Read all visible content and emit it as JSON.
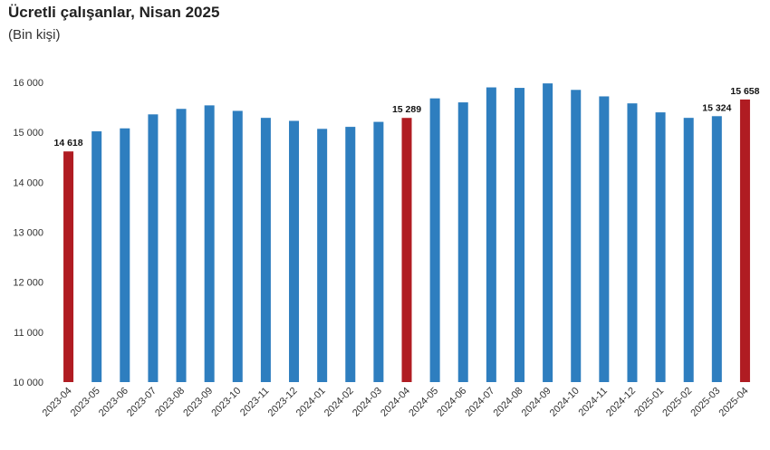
{
  "chart_data": {
    "type": "bar",
    "title": "Ücretli çalışanlar, Nisan 2025",
    "subtitle": "(Bin kişi)",
    "categories": [
      "2023-04",
      "2023-05",
      "2023-06",
      "2023-07",
      "2023-08",
      "2023-09",
      "2023-10",
      "2023-11",
      "2023-12",
      "2024-01",
      "2024-02",
      "2024-03",
      "2024-04",
      "2024-05",
      "2024-06",
      "2024-07",
      "2024-08",
      "2024-09",
      "2024-10",
      "2024-11",
      "2024-12",
      "2025-01",
      "2025-02",
      "2025-03",
      "2025-04"
    ],
    "values": [
      14618,
      15020,
      15080,
      15360,
      15470,
      15540,
      15430,
      15290,
      15230,
      15070,
      15110,
      15210,
      15289,
      15680,
      15600,
      15900,
      15890,
      15980,
      15850,
      15720,
      15580,
      15400,
      15290,
      15324,
      15658
    ],
    "ylim": [
      10000,
      16000
    ],
    "yticks": [
      10000,
      11000,
      12000,
      13000,
      14000,
      15000,
      16000
    ],
    "ytick_labels": [
      "10 000",
      "11 000",
      "12 000",
      "13 000",
      "14 000",
      "15 000",
      "16 000"
    ],
    "highlighted": [
      "2023-04",
      "2024-04",
      "2025-04"
    ],
    "data_labels": [
      {
        "category": "2023-04",
        "text": "14 618"
      },
      {
        "category": "2024-04",
        "text": "15 289"
      },
      {
        "category": "2025-03",
        "text": "15 324"
      },
      {
        "category": "2025-04",
        "text": "15 658"
      }
    ],
    "colors": {
      "default": "#2E7EBF",
      "highlight": "#B01C22"
    },
    "grid": false
  }
}
